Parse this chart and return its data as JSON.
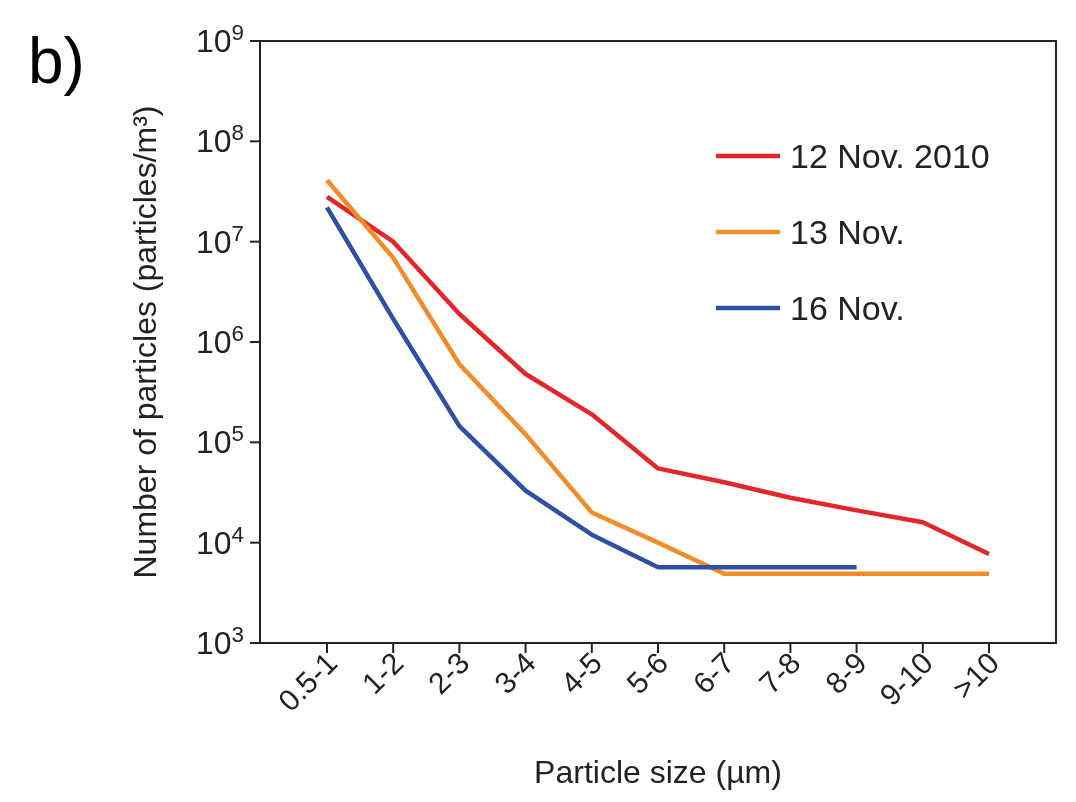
{
  "chart_data": {
    "type": "line",
    "xlabel": "Particle size (µm)",
    "ylabel": "Number of particles (particles/m³)",
    "annotations": [
      "b)"
    ],
    "categories": [
      "0.5-1",
      "1-2",
      "2-3",
      "3-4",
      "4-5",
      "5-6",
      "6-7",
      "7-8",
      "8-9",
      "9-10",
      ">10"
    ],
    "series": [
      {
        "name": "12 Nov. 2010",
        "color": "#e3262a",
        "values": [
          28000000,
          10000000,
          1900000,
          480000,
          190000,
          55000,
          40000,
          28000,
          21000,
          16000,
          7700
        ]
      },
      {
        "name": "13 Nov.",
        "color": "#f28c28",
        "values": [
          41000000,
          6900000,
          600000,
          120000,
          20000,
          10000,
          4900,
          4900,
          4900,
          4900,
          4900
        ]
      },
      {
        "name": "16 Nov.",
        "color": "#2e4fa3",
        "values": [
          22000000,
          1700000,
          145000,
          33000,
          12000,
          5700,
          5700,
          5700,
          5700,
          null,
          null
        ]
      }
    ],
    "log": true,
    "ylim": [
      1000,
      1000000000
    ],
    "yticks": [
      {
        "value": 1000,
        "label": "10$^{3}$"
      },
      {
        "value": 10000,
        "label": "10$^{4}$"
      },
      {
        "value": 100000,
        "label": "10$^{5}$"
      },
      {
        "value": 1000000,
        "label": "10$^{6}$"
      },
      {
        "value": 10000000,
        "label": "10$^{7}$"
      },
      {
        "value": 100000000,
        "label": "10$^{8}$"
      },
      {
        "value": 1000000000,
        "label": "10$^{9}$"
      }
    ],
    "legend": "top right",
    "marker": "none",
    "line_style": "solid",
    "grid": false
  }
}
